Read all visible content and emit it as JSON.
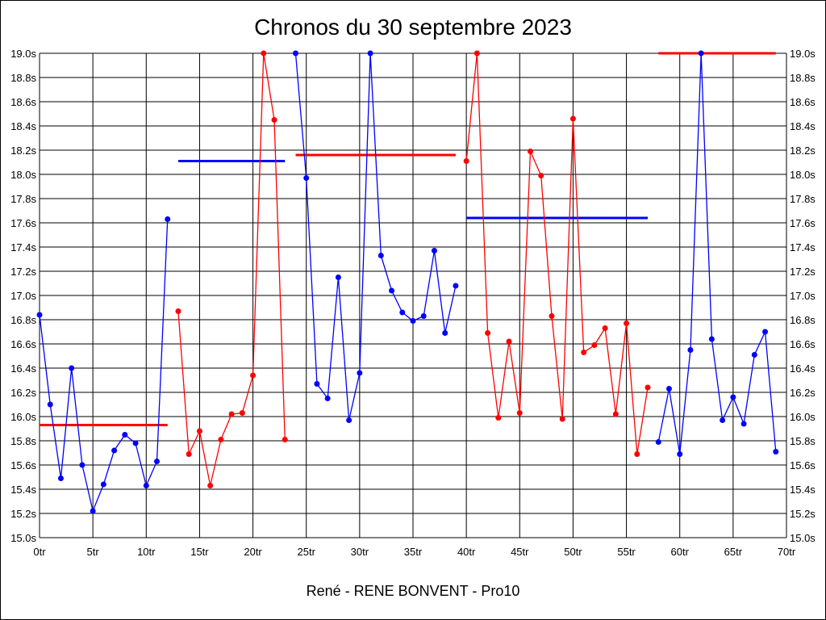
{
  "chart_data": {
    "type": "line",
    "title": "Chronos du 30 septembre 2023",
    "xlabel": "René - RENE BONVENT - Pro10",
    "xlim": [
      0,
      70
    ],
    "ylim": [
      15.0,
      19.0
    ],
    "x_ticks": [
      0,
      5,
      10,
      15,
      20,
      25,
      30,
      35,
      40,
      45,
      50,
      55,
      60,
      65,
      70
    ],
    "x_tick_suffix": "tr",
    "y_ticks": [
      15.0,
      15.2,
      15.4,
      15.6,
      15.8,
      16.0,
      16.2,
      16.4,
      16.6,
      16.8,
      17.0,
      17.2,
      17.4,
      17.6,
      17.8,
      18.0,
      18.2,
      18.4,
      18.6,
      18.8,
      19.0
    ],
    "y_tick_suffix": "s",
    "grid": true,
    "colors": {
      "blue": "#0000ff",
      "red": "#ff0000"
    },
    "series": [
      {
        "color": "blue",
        "x": [
          0,
          1,
          2,
          3,
          4,
          5,
          6,
          7,
          8,
          9,
          10,
          11,
          12
        ],
        "y": [
          16.84,
          16.1,
          15.49,
          16.4,
          15.6,
          15.22,
          15.44,
          15.72,
          15.85,
          15.78,
          15.43,
          15.63,
          17.63
        ]
      },
      {
        "color": "red",
        "x": [
          13,
          14,
          15,
          16,
          17,
          18,
          19,
          20,
          21,
          22,
          23
        ],
        "y": [
          16.87,
          15.69,
          15.88,
          15.43,
          15.81,
          16.02,
          16.03,
          16.34,
          19.0,
          18.45,
          15.81
        ]
      },
      {
        "color": "blue",
        "x": [
          24,
          25,
          26,
          27,
          28,
          29,
          30,
          31,
          32,
          33,
          34,
          35,
          36,
          37,
          38,
          39
        ],
        "y": [
          19.0,
          17.97,
          16.27,
          16.15,
          17.15,
          15.97,
          16.36,
          19.0,
          17.33,
          17.04,
          16.86,
          16.79,
          16.83,
          17.37,
          16.69,
          17.08
        ]
      },
      {
        "color": "red",
        "x": [
          40,
          41,
          42,
          43,
          44,
          45,
          46,
          47,
          48,
          49,
          50,
          51,
          52,
          53,
          54,
          55,
          56,
          57
        ],
        "y": [
          18.11,
          19.0,
          16.69,
          15.99,
          16.62,
          16.03,
          18.19,
          17.99,
          16.83,
          15.98,
          18.46,
          16.53,
          16.59,
          16.73,
          16.02,
          16.77,
          15.69,
          16.24
        ]
      },
      {
        "color": "blue",
        "x": [
          58,
          59,
          60,
          61,
          62,
          63,
          64,
          65,
          66,
          67,
          68,
          69
        ],
        "y": [
          15.79,
          16.23,
          15.69,
          16.55,
          19.0,
          16.64,
          15.97,
          16.16,
          15.94,
          16.51,
          16.7,
          15.71
        ]
      }
    ],
    "averages": [
      {
        "color": "red",
        "x": [
          0,
          12
        ],
        "y": 15.93
      },
      {
        "color": "blue",
        "x": [
          13,
          23
        ],
        "y": 18.11
      },
      {
        "color": "red",
        "x": [
          24,
          39
        ],
        "y": 18.16
      },
      {
        "color": "blue",
        "x": [
          40,
          57
        ],
        "y": 17.64
      },
      {
        "color": "red",
        "x": [
          58,
          69
        ],
        "y": 19.0
      }
    ]
  }
}
